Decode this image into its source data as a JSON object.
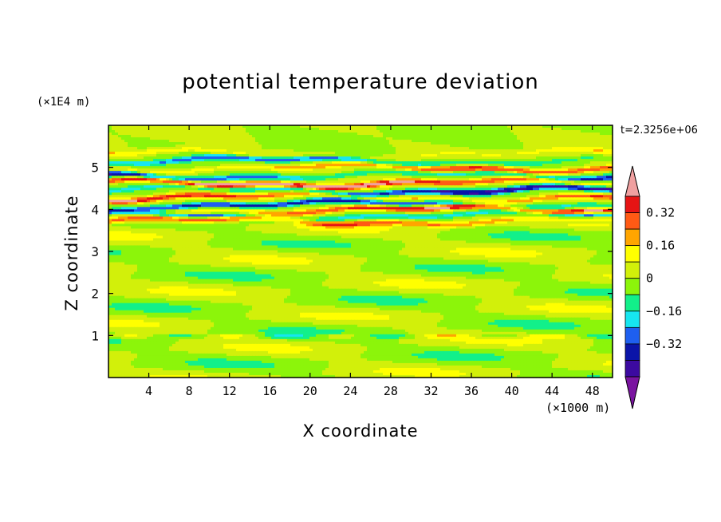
{
  "chart_data": {
    "type": "heatmap",
    "title": "potential temperature deviation",
    "xlabel": "X coordinate",
    "ylabel": "Z coordinate",
    "x_unit": "(×1000 m)",
    "y_unit": "(×1E4 m)",
    "time_label": "t=2.3256e+06",
    "xlim": [
      0,
      50
    ],
    "ylim": [
      0,
      6
    ],
    "x_ticks": [
      "4",
      "8",
      "12",
      "16",
      "20",
      "24",
      "28",
      "32",
      "36",
      "40",
      "44",
      "48"
    ],
    "y_ticks": [
      "1",
      "2",
      "3",
      "4",
      "5"
    ],
    "colorbar": {
      "ticks": [
        "0.32",
        "0.16",
        "0",
        "−0.16",
        "−0.32"
      ],
      "levels": [
        -0.48,
        -0.4,
        -0.32,
        -0.24,
        -0.16,
        -0.08,
        0,
        0.08,
        0.16,
        0.24,
        0.32,
        0.4
      ],
      "colors": [
        "#7a14a0",
        "#3c0aa0",
        "#0a14a8",
        "#1e5ff0",
        "#16e6f0",
        "#12f08a",
        "#8cf50a",
        "#d2f00a",
        "#ffff00",
        "#ffa500",
        "#ff5a14",
        "#e61414",
        "#f0a0a0"
      ]
    },
    "bands": [
      {
        "z": 3.72,
        "amp": 0.3
      },
      {
        "z": 3.85,
        "amp": -0.4
      },
      {
        "z": 3.98,
        "amp": 0.45
      },
      {
        "z": 4.12,
        "amp": -0.35
      },
      {
        "z": 4.28,
        "amp": 0.4
      },
      {
        "z": 4.45,
        "amp": -0.4
      },
      {
        "z": 4.62,
        "amp": 0.45
      },
      {
        "z": 4.8,
        "amp": -0.4
      },
      {
        "z": 4.98,
        "amp": 0.3
      },
      {
        "z": 5.15,
        "amp": -0.25
      },
      {
        "z": 5.32,
        "amp": 0.15
      }
    ]
  }
}
